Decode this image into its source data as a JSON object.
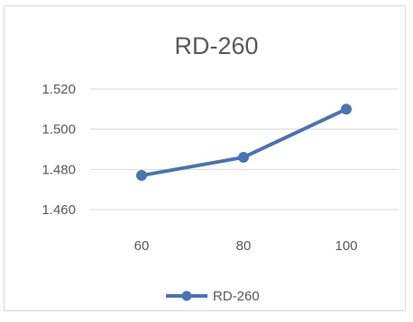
{
  "chart_data": {
    "type": "line",
    "title": "RD-260",
    "x": [
      60,
      80,
      100
    ],
    "categories": [
      "60",
      "80",
      "100"
    ],
    "series": [
      {
        "name": "RD-260",
        "values": [
          1.477,
          1.486,
          1.51
        ],
        "color": "#4a73b5"
      }
    ],
    "ylim": [
      1.46,
      1.52
    ],
    "yticks": [
      "1.460",
      "1.480",
      "1.500",
      "1.520"
    ],
    "xlabel": "",
    "ylabel": "",
    "grid": true,
    "legend_position": "bottom"
  }
}
